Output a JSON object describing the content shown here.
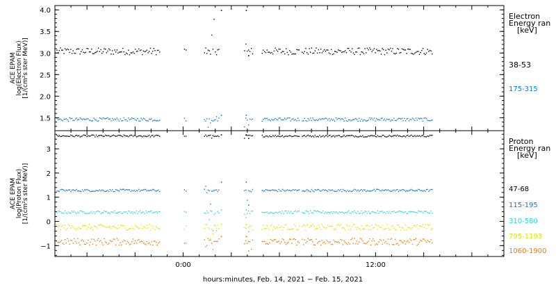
{
  "chart_data": [
    {
      "type": "scatter",
      "ylabel_lines": [
        "ACE EPAM",
        "log(Electron Flux)",
        "[1/(cm²s ster MeV)]"
      ],
      "legend_title_lines": [
        "Electron",
        "Energy ran",
        "[keV]"
      ],
      "ylim": [
        1.2,
        4.1
      ],
      "yticks": [
        1.5,
        2.0,
        2.5,
        3.0,
        3.5,
        4.0
      ],
      "ytick_labels": [
        "1.5",
        "2.0",
        "2.5",
        "3.0",
        "3.5",
        "4.0"
      ],
      "series": [
        {
          "name": "38-53",
          "color": "#000000",
          "base": 3.05,
          "noise": 0.08,
          "excursion_hi": 4.0,
          "excursion_lo": 2.95
        },
        {
          "name": "175-315",
          "color": "#0a78c8",
          "base": 1.47,
          "noise": 0.04,
          "excursion_hi": 1.57,
          "excursion_lo": 1.22
        }
      ]
    },
    {
      "type": "scatter",
      "ylabel_lines": [
        "ACE EPAM",
        "log(Proton Flux)",
        "[1/(cm²s ster MeV)]"
      ],
      "legend_title_lines": [
        "Proton",
        "Energy ran",
        "[keV]"
      ],
      "ylim": [
        -1.45,
        3.75
      ],
      "yticks": [
        -1,
        0,
        1,
        2,
        3
      ],
      "ytick_labels": [
        "−1",
        "0",
        "1",
        "2",
        "3"
      ],
      "series": [
        {
          "name": "47-68",
          "color": "#000000",
          "base": 3.55,
          "noise": 0.04,
          "excursion_hi": 3.6,
          "excursion_lo": 3.45
        },
        {
          "name": "115-195",
          "color": "#0a78c8",
          "base": 1.3,
          "noise": 0.05,
          "excursion_hi": 1.65,
          "excursion_lo": 0.7
        },
        {
          "name": "310-580",
          "color": "#28d8d8",
          "base": 0.4,
          "noise": 0.06,
          "excursion_hi": 0.5,
          "excursion_lo": -0.4
        },
        {
          "name": "795-1193",
          "color": "#d8e800",
          "base": -0.22,
          "noise": 0.12,
          "excursion_hi": -0.1,
          "excursion_lo": -0.8
        },
        {
          "name": "1060-1900",
          "color": "#f07800",
          "base": -0.82,
          "noise": 0.14,
          "excursion_hi": -0.6,
          "excursion_lo": -1.2
        }
      ]
    }
  ],
  "time_axis": {
    "xlim_hours": [
      -8,
      20
    ],
    "tick_hours": [
      0,
      12
    ],
    "tick_labels": [
      "0:00",
      "12:00"
    ],
    "xlabel": "hours:minutes, Feb. 14, 2021 − Feb. 15, 2021",
    "data_segments_hours": [
      [
        -7.9,
        -1.5
      ],
      [
        0.05,
        0.15
      ],
      [
        1.3,
        2.2
      ],
      [
        3.8,
        4.3
      ],
      [
        4.9,
        7.2
      ],
      [
        7.4,
        15.5
      ]
    ]
  }
}
